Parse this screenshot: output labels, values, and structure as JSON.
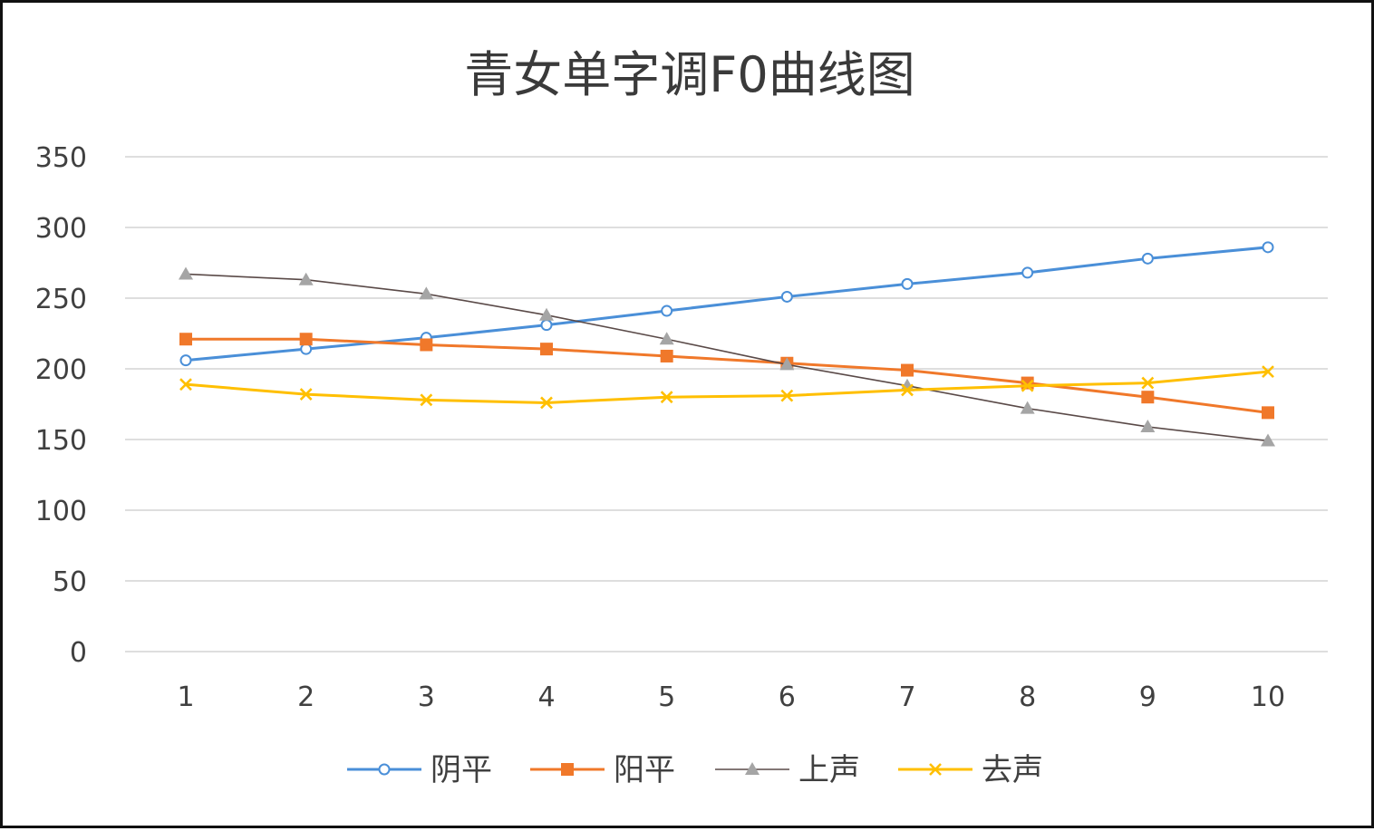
{
  "chart_data": {
    "type": "line",
    "title": "青女单字调F0曲线图",
    "xlabel": "",
    "ylabel": "",
    "x": [
      1,
      2,
      3,
      4,
      5,
      6,
      7,
      8,
      9,
      10
    ],
    "ylim": [
      0,
      350
    ],
    "yticks": [
      0,
      50,
      100,
      150,
      200,
      250,
      300,
      350
    ],
    "grid": true,
    "legend_position": "bottom",
    "series": [
      {
        "name": "阴平",
        "color": "#4a8fd8",
        "marker": "circle-open",
        "values": [
          206,
          214,
          222,
          231,
          241,
          251,
          260,
          268,
          278,
          286
        ]
      },
      {
        "name": "阳平",
        "color": "#f0782a",
        "marker": "square",
        "values": [
          221,
          221,
          217,
          214,
          209,
          204,
          199,
          190,
          180,
          169
        ]
      },
      {
        "name": "上声",
        "color": "#5a4a48",
        "markerColor": "#a5a5a5",
        "marker": "triangle",
        "values": [
          267,
          263,
          253,
          238,
          221,
          203,
          188,
          172,
          159,
          149
        ]
      },
      {
        "name": "去声",
        "color": "#ffbf00",
        "marker": "x",
        "values": [
          189,
          182,
          178,
          176,
          180,
          181,
          185,
          188,
          190,
          198
        ]
      }
    ]
  }
}
